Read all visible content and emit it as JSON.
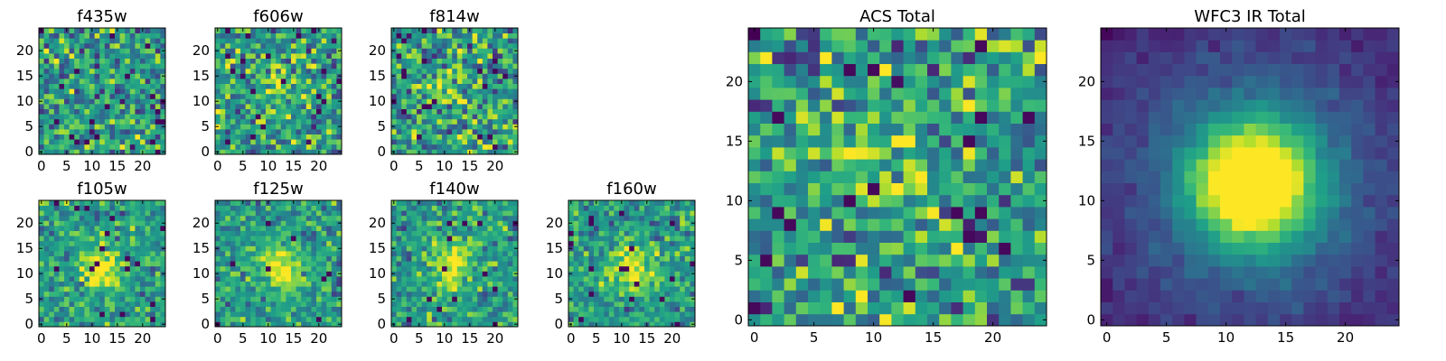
{
  "chart_data": [
    {
      "type": "heatmap",
      "title": "f435w",
      "xlim": [
        0,
        25
      ],
      "ylim": [
        0,
        25
      ],
      "xticks": [
        0,
        5,
        10,
        15,
        20
      ],
      "yticks": [
        0,
        5,
        10,
        15,
        20
      ],
      "colormap": "viridis",
      "grid_size": 25,
      "center": [
        11.5,
        11.5
      ],
      "signal": "none",
      "noise": "high"
    },
    {
      "type": "heatmap",
      "title": "f606w",
      "xlim": [
        0,
        25
      ],
      "ylim": [
        0,
        25
      ],
      "xticks": [
        0,
        5,
        10,
        15,
        20
      ],
      "yticks": [
        0,
        5,
        10,
        15,
        20
      ],
      "colormap": "viridis",
      "grid_size": 25,
      "center": [
        12,
        12
      ],
      "signal": "faint central source",
      "noise": "high"
    },
    {
      "type": "heatmap",
      "title": "f814w",
      "xlim": [
        0,
        25
      ],
      "ylim": [
        0,
        25
      ],
      "xticks": [
        0,
        5,
        10,
        15,
        20
      ],
      "yticks": [
        0,
        5,
        10,
        15,
        20
      ],
      "colormap": "viridis",
      "grid_size": 25,
      "center": [
        11.5,
        12
      ],
      "signal": "faint central source",
      "noise": "high"
    },
    {
      "type": "heatmap",
      "title": "f105w",
      "xlim": [
        0,
        25
      ],
      "ylim": [
        0,
        25
      ],
      "xticks": [
        0,
        5,
        10,
        15,
        20
      ],
      "yticks": [
        0,
        5,
        10,
        15,
        20
      ],
      "colormap": "viridis",
      "grid_size": 25,
      "center": [
        12,
        11
      ],
      "signal": "central source",
      "noise": "moderate"
    },
    {
      "type": "heatmap",
      "title": "f125w",
      "xlim": [
        0,
        25
      ],
      "ylim": [
        0,
        25
      ],
      "xticks": [
        0,
        5,
        10,
        15,
        20
      ],
      "yticks": [
        0,
        5,
        10,
        15,
        20
      ],
      "colormap": "viridis",
      "grid_size": 25,
      "center": [
        12.5,
        11
      ],
      "signal": "central source",
      "noise": "moderate"
    },
    {
      "type": "heatmap",
      "title": "f140w",
      "xlim": [
        0,
        25
      ],
      "ylim": [
        0,
        25
      ],
      "xticks": [
        0,
        5,
        10,
        15,
        20
      ],
      "yticks": [
        0,
        5,
        10,
        15,
        20
      ],
      "colormap": "viridis",
      "grid_size": 25,
      "center": [
        11.5,
        11.5
      ],
      "signal": "central source",
      "noise": "moderate"
    },
    {
      "type": "heatmap",
      "title": "f160w",
      "xlim": [
        0,
        25
      ],
      "ylim": [
        0,
        25
      ],
      "xticks": [
        0,
        5,
        10,
        15,
        20
      ],
      "yticks": [
        0,
        5,
        10,
        15,
        20
      ],
      "colormap": "viridis",
      "grid_size": 25,
      "center": [
        12,
        11
      ],
      "signal": "central source",
      "noise": "moderate"
    },
    {
      "type": "heatmap",
      "title": "ACS Total",
      "xlim": [
        0,
        25
      ],
      "ylim": [
        0,
        25
      ],
      "xticks": [
        0,
        5,
        10,
        15,
        20
      ],
      "yticks": [
        0,
        5,
        10,
        15,
        20
      ],
      "colormap": "viridis",
      "grid_size": 25,
      "center": [
        11.5,
        12
      ],
      "signal": "faint central source",
      "noise": "high"
    },
    {
      "type": "heatmap",
      "title": "WFC3 IR Total",
      "xlim": [
        0,
        25
      ],
      "ylim": [
        0,
        25
      ],
      "xticks": [
        0,
        5,
        10,
        15,
        20
      ],
      "yticks": [
        0,
        5,
        10,
        15,
        20
      ],
      "colormap": "viridis",
      "grid_size": 25,
      "center": [
        12.3,
        11.5
      ],
      "signal": "bright central source",
      "noise": "low"
    }
  ]
}
